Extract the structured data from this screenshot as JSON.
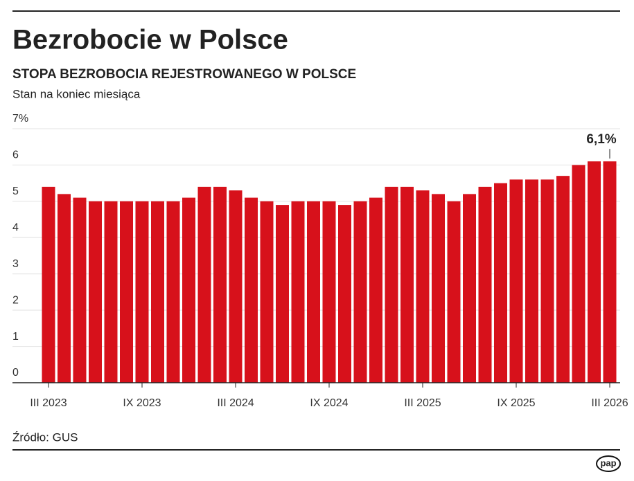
{
  "header": {
    "title": "Bezrobocie w Polsce"
  },
  "chart_data": {
    "type": "bar",
    "title": "STOPA BEZROBOCIA REJESTROWANEGO W POLSCE",
    "subtitle": "Stan na koniec miesiąca",
    "categories": [
      "III 2023",
      null,
      null,
      null,
      null,
      null,
      "IX 2023",
      null,
      null,
      null,
      null,
      null,
      "III 2024",
      null,
      null,
      null,
      null,
      null,
      "IX 2024",
      null,
      null,
      null,
      null,
      null,
      "III 2025",
      null,
      null,
      null,
      null,
      null,
      "IX 2025",
      null,
      null,
      null,
      null,
      null,
      "III 2026"
    ],
    "values": [
      5.4,
      5.2,
      5.1,
      5.0,
      5.0,
      5.0,
      5.0,
      5.0,
      5.0,
      5.1,
      5.4,
      5.4,
      5.3,
      5.1,
      5.0,
      4.9,
      5.0,
      5.0,
      5.0,
      4.9,
      5.0,
      5.1,
      5.4,
      5.4,
      5.3,
      5.2,
      5.0,
      5.2,
      5.4,
      5.5,
      5.6,
      5.6,
      5.6,
      5.7,
      6.0,
      6.1,
      6.1
    ],
    "value_labels": [
      null,
      null,
      null,
      null,
      null,
      null,
      null,
      null,
      null,
      null,
      null,
      null,
      null,
      null,
      null,
      null,
      null,
      null,
      null,
      null,
      null,
      null,
      null,
      null,
      null,
      null,
      null,
      null,
      null,
      null,
      null,
      null,
      null,
      null,
      null,
      null,
      "6,1%"
    ],
    "color": "#d7111b",
    "ylim": [
      0,
      7
    ],
    "yticks": [
      0,
      1,
      2,
      3,
      4,
      5,
      6,
      {
        "value": 7,
        "label": "7%"
      }
    ],
    "grid": true
  },
  "footer": {
    "source": "Źródło: GUS",
    "logo": "pap"
  }
}
